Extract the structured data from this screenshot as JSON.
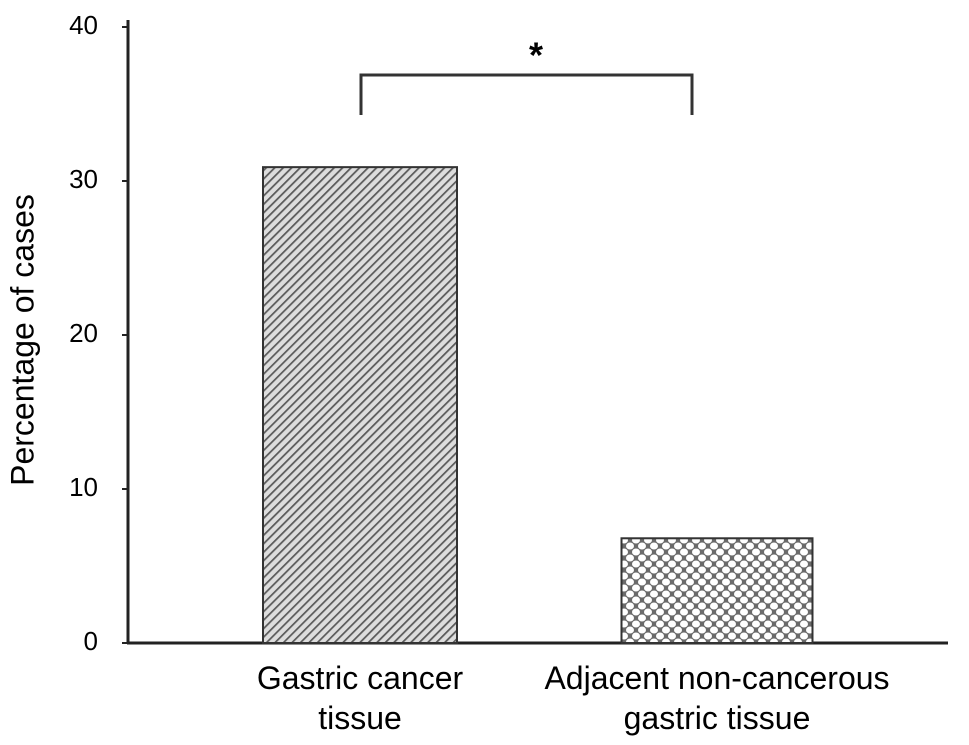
{
  "chart_data": {
    "type": "bar",
    "y_label": "Percentage of cases",
    "categories": [
      "Gastric cancer tissue",
      "Adjacent non-cancerous gastric tissue"
    ],
    "values": [
      30.9,
      6.8
    ],
    "colors": [
      "#5a5a5a",
      "#6a6a6a"
    ],
    "ylim": [
      0,
      40
    ],
    "yticks": [
      0,
      10,
      20,
      30,
      40
    ],
    "annotation": "*"
  }
}
